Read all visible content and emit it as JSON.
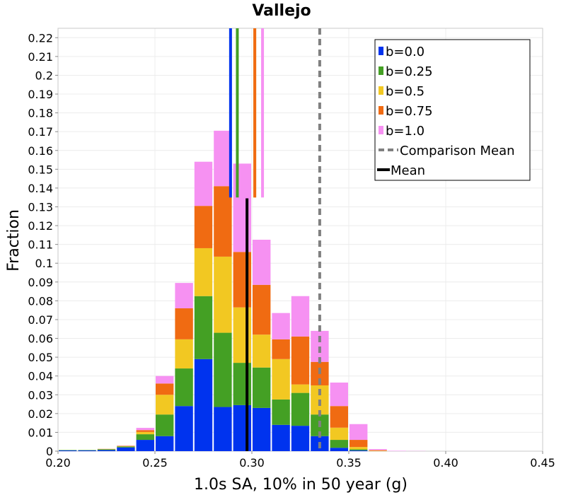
{
  "chart_data": {
    "type": "bar",
    "title": "Vallejo",
    "xlabel": "1.0s SA, 10% in 50 year (g)",
    "ylabel": "Fraction",
    "xlim": [
      0.2,
      0.45
    ],
    "ylim": [
      0,
      0.225
    ],
    "grid": true,
    "legend_position": "top-right",
    "xticks": [
      "0.20",
      "0.25",
      "0.30",
      "0.35",
      "0.40",
      "0.45"
    ],
    "xtick_values": [
      0.2,
      0.25,
      0.3,
      0.35,
      0.4,
      0.45
    ],
    "yticks": [
      "0",
      "0.01",
      "0.02",
      "0.03",
      "0.04",
      "0.05",
      "0.06",
      "0.07",
      "0.08",
      "0.09",
      "0.1",
      "0.11",
      "0.12",
      "0.13",
      "0.14",
      "0.15",
      "0.16",
      "0.17",
      "0.18",
      "0.19",
      "0.2",
      "0.21",
      "0.22"
    ],
    "ytick_values": [
      0,
      0.01,
      0.02,
      0.03,
      0.04,
      0.05,
      0.06,
      0.07,
      0.08,
      0.09,
      0.1,
      0.11,
      0.12,
      0.13,
      0.14,
      0.15,
      0.16,
      0.17,
      0.18,
      0.19,
      0.2,
      0.21,
      0.22
    ],
    "bin_width": 0.01,
    "bin_starts": [
      0.2,
      0.21,
      0.22,
      0.23,
      0.24,
      0.25,
      0.26,
      0.27,
      0.28,
      0.29,
      0.3,
      0.31,
      0.32,
      0.33,
      0.34,
      0.35,
      0.36,
      0.37,
      0.38
    ],
    "stacked": true,
    "series": [
      {
        "name": "b=0.0",
        "color": "#0033ee",
        "values": [
          0.0004,
          0.0004,
          0.0006,
          0.002,
          0.006,
          0.008,
          0.024,
          0.049,
          0.0235,
          0.0245,
          0.023,
          0.014,
          0.0135,
          0.008,
          0.0018,
          0.0004,
          0,
          0,
          0
        ]
      },
      {
        "name": "b=0.25",
        "color": "#44a024",
        "values": [
          0.0002,
          0.0002,
          0.0004,
          0.0005,
          0.003,
          0.0115,
          0.02,
          0.0335,
          0.0395,
          0.0225,
          0.0215,
          0.0135,
          0.0175,
          0.0115,
          0.0042,
          0.0006,
          0,
          0,
          0
        ]
      },
      {
        "name": "b=0.5",
        "color": "#f2c822",
        "values": [
          0,
          0,
          0.0001,
          0.0002,
          0.0012,
          0.0105,
          0.0155,
          0.0255,
          0.0405,
          0.0295,
          0.0175,
          0.0215,
          0.0045,
          0.0155,
          0.0065,
          0.0012,
          0.0002,
          0,
          0
        ]
      },
      {
        "name": "b=0.75",
        "color": "#f06b12",
        "values": [
          0,
          0,
          0.0001,
          0.0002,
          0.001,
          0.006,
          0.0165,
          0.0225,
          0.0375,
          0.0295,
          0.0265,
          0.0105,
          0.0255,
          0.0125,
          0.0115,
          0.0038,
          0.0003,
          0,
          0
        ]
      },
      {
        "name": "b=1.0",
        "color": "#f691f2",
        "values": [
          0,
          0,
          0,
          0.0001,
          0.0012,
          0.004,
          0.0135,
          0.0235,
          0.0295,
          0.047,
          0.024,
          0.014,
          0.0215,
          0.0165,
          0.0125,
          0.0084,
          0.0006,
          0.0002,
          0.0001
        ]
      }
    ],
    "mean_lines": [
      {
        "series": "b=0.0",
        "color": "#0033ee",
        "x": 0.289
      },
      {
        "series": "b=0.25",
        "color": "#44a024",
        "x": 0.2925
      },
      {
        "series": "b=0.5",
        "color": "#f2c822",
        "x": 0.3015
      },
      {
        "series": "b=0.75",
        "color": "#f06b12",
        "x": 0.3015
      },
      {
        "series": "b=1.0",
        "color": "#f691f2",
        "x": 0.3055
      }
    ],
    "mean_line_height": 0.135,
    "overall_mean": {
      "label": "Mean",
      "color": "#000000",
      "x": 0.2975,
      "top": 0.1345
    },
    "comparison_mean": {
      "label": "Comparison Mean",
      "color": "#808080",
      "x": 0.335
    }
  }
}
